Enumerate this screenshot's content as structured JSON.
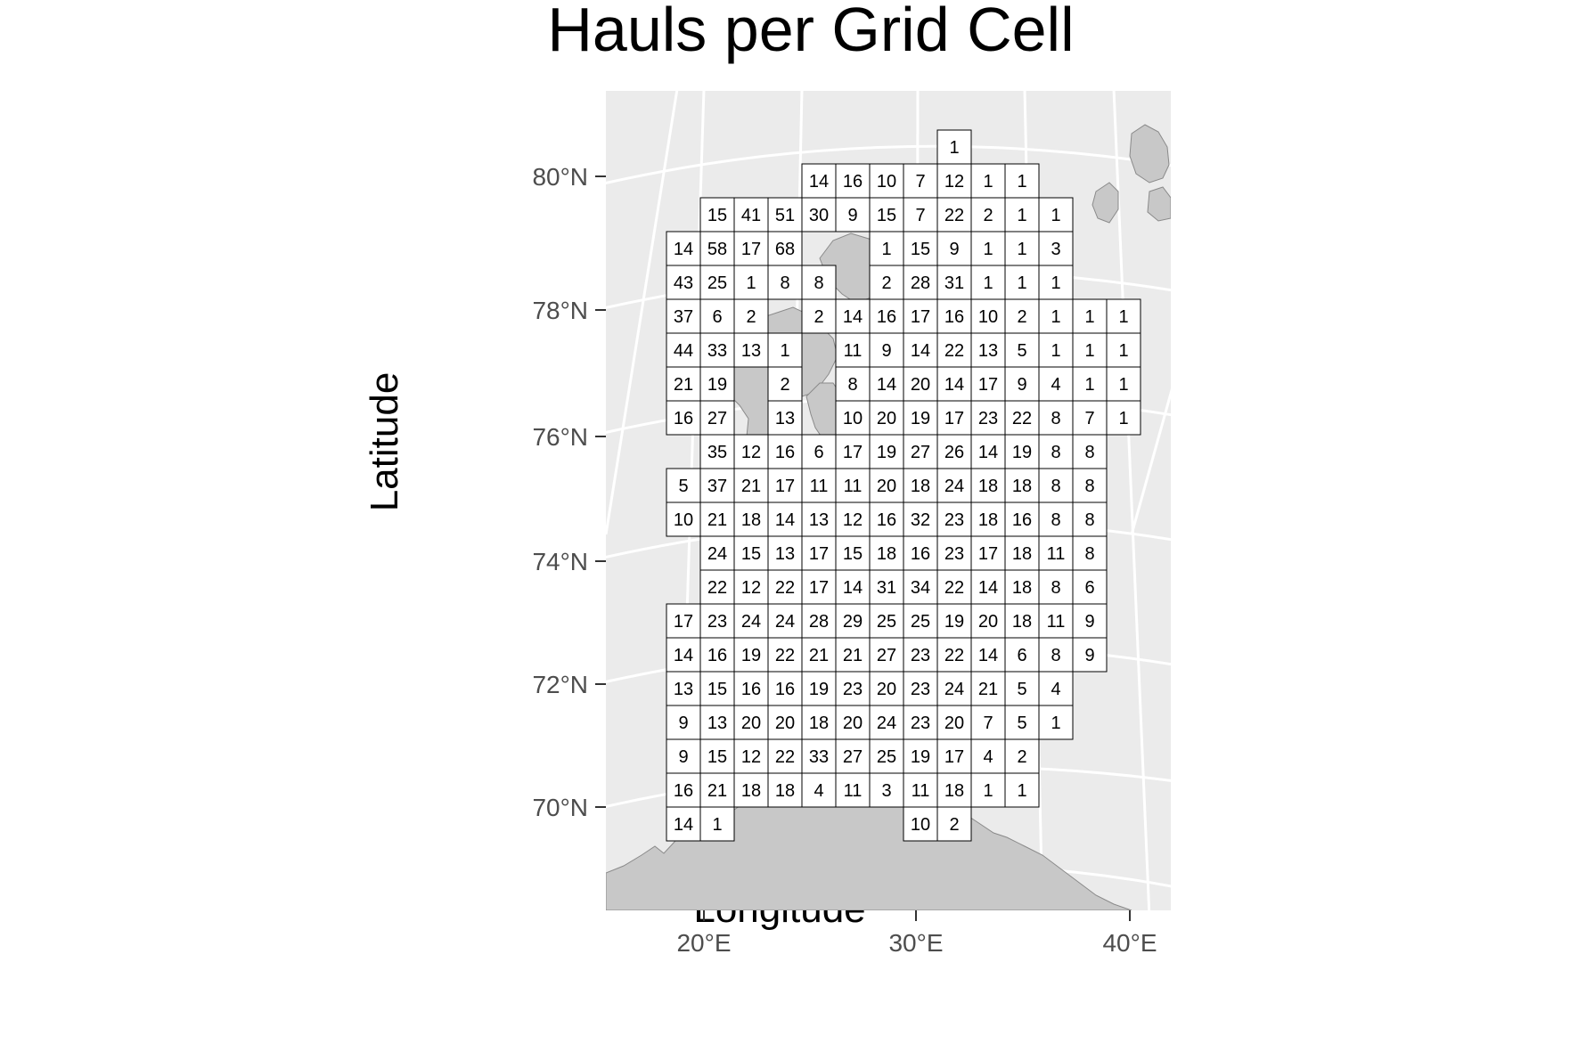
{
  "title": "Hauls per Grid Cell",
  "x_axis_title": "Longitude",
  "y_axis_title": "Latitude",
  "colors": {
    "panel_background": "#ebebeb",
    "graticule": "#ffffff",
    "land": "#c8c8c8",
    "land_border": "#8a8a8a",
    "cell_fill": "#ffffff",
    "cell_border": "#000000",
    "tick_text": "#4d4d4d"
  },
  "chart_data": {
    "type": "heatmap",
    "title": "Hauls per Grid Cell",
    "xlabel": "Longitude",
    "ylabel": "Latitude",
    "x_ticks": [
      "20°E",
      "30°E",
      "40°E"
    ],
    "y_ticks": [
      "80°N",
      "78°N",
      "76°N",
      "74°N",
      "72°N",
      "70°N"
    ],
    "column_start_longitude": 18,
    "row_step_latitude": 0.5,
    "column_step_longitude": 1,
    "rows": [
      {
        "lat": 80.5,
        "cells": [
          null,
          null,
          null,
          null,
          null,
          null,
          null,
          null,
          1
        ]
      },
      {
        "lat": 80.0,
        "cells": [
          null,
          null,
          null,
          null,
          14,
          16,
          10,
          7,
          12,
          1,
          1
        ]
      },
      {
        "lat": 79.5,
        "cells": [
          null,
          15,
          41,
          51,
          30,
          9,
          15,
          7,
          22,
          2,
          1,
          1
        ]
      },
      {
        "lat": 79.0,
        "cells": [
          14,
          58,
          17,
          68,
          null,
          null,
          1,
          15,
          9,
          1,
          1,
          3
        ]
      },
      {
        "lat": 78.5,
        "cells": [
          43,
          25,
          1,
          8,
          8,
          null,
          2,
          28,
          31,
          1,
          1,
          1
        ]
      },
      {
        "lat": 78.0,
        "cells": [
          37,
          6,
          2,
          null,
          2,
          14,
          16,
          17,
          16,
          10,
          2,
          1,
          1,
          1
        ]
      },
      {
        "lat": 77.5,
        "cells": [
          44,
          33,
          13,
          1,
          null,
          11,
          9,
          14,
          22,
          13,
          5,
          1,
          1,
          1
        ]
      },
      {
        "lat": 77.0,
        "cells": [
          21,
          19,
          null,
          2,
          null,
          8,
          14,
          20,
          14,
          17,
          9,
          4,
          1,
          1
        ]
      },
      {
        "lat": 76.5,
        "cells": [
          16,
          27,
          null,
          13,
          null,
          10,
          20,
          19,
          17,
          23,
          22,
          8,
          7,
          1
        ]
      },
      {
        "lat": 76.0,
        "cells": [
          null,
          35,
          12,
          16,
          6,
          17,
          19,
          27,
          26,
          14,
          19,
          8,
          8
        ]
      },
      {
        "lat": 75.5,
        "cells": [
          5,
          37,
          21,
          17,
          11,
          11,
          20,
          18,
          24,
          18,
          18,
          8,
          8
        ]
      },
      {
        "lat": 75.0,
        "cells": [
          10,
          21,
          18,
          14,
          13,
          12,
          16,
          32,
          23,
          18,
          16,
          8,
          8
        ]
      },
      {
        "lat": 74.5,
        "cells": [
          null,
          24,
          15,
          13,
          17,
          15,
          18,
          16,
          23,
          17,
          18,
          11,
          8
        ]
      },
      {
        "lat": 74.0,
        "cells": [
          null,
          22,
          12,
          22,
          17,
          14,
          31,
          34,
          22,
          14,
          18,
          8,
          6
        ]
      },
      {
        "lat": 73.5,
        "cells": [
          17,
          23,
          24,
          24,
          28,
          29,
          25,
          25,
          19,
          20,
          18,
          11,
          9
        ]
      },
      {
        "lat": 73.0,
        "cells": [
          14,
          16,
          19,
          22,
          21,
          21,
          27,
          23,
          22,
          14,
          6,
          8,
          9
        ]
      },
      {
        "lat": 72.5,
        "cells": [
          13,
          15,
          16,
          16,
          19,
          23,
          20,
          23,
          24,
          21,
          5,
          4
        ]
      },
      {
        "lat": 72.0,
        "cells": [
          9,
          13,
          20,
          20,
          18,
          20,
          24,
          23,
          20,
          7,
          5,
          1
        ]
      },
      {
        "lat": 71.5,
        "cells": [
          9,
          15,
          12,
          22,
          33,
          27,
          25,
          19,
          17,
          4,
          2
        ]
      },
      {
        "lat": 71.0,
        "cells": [
          16,
          21,
          18,
          18,
          4,
          11,
          3,
          11,
          18,
          1,
          1
        ]
      },
      {
        "lat": 70.5,
        "cells": [
          14,
          1,
          null,
          null,
          null,
          null,
          null,
          10,
          2
        ]
      }
    ]
  }
}
